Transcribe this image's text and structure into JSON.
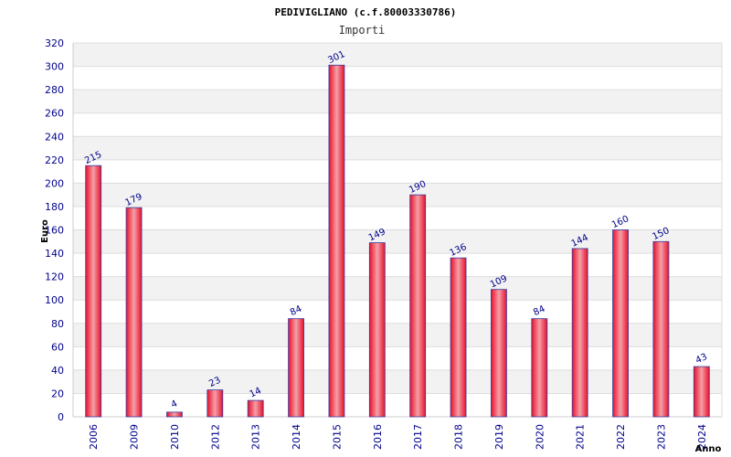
{
  "chart_data": {
    "type": "bar",
    "title": "PEDIVIGLIANO (c.f.80003330786)",
    "subtitle": "Importi",
    "xlabel": "Anno",
    "ylabel": "Euro",
    "categories": [
      "2006",
      "2009",
      "2010",
      "2012",
      "2013",
      "2014",
      "2015",
      "2016",
      "2017",
      "2018",
      "2019",
      "2020",
      "2021",
      "2022",
      "2023",
      "2024"
    ],
    "values": [
      215,
      179,
      4,
      23,
      14,
      84,
      301,
      149,
      190,
      136,
      109,
      84,
      144,
      160,
      150,
      43
    ],
    "ylim": [
      0,
      320
    ],
    "yticks": [
      0,
      20,
      40,
      60,
      80,
      100,
      120,
      140,
      160,
      180,
      200,
      220,
      240,
      260,
      280,
      300,
      320
    ],
    "grid": true,
    "bar_color": "#e8102a",
    "bar_highlight": "#f4a0a8",
    "bar_outline": "#3a3aa0"
  }
}
